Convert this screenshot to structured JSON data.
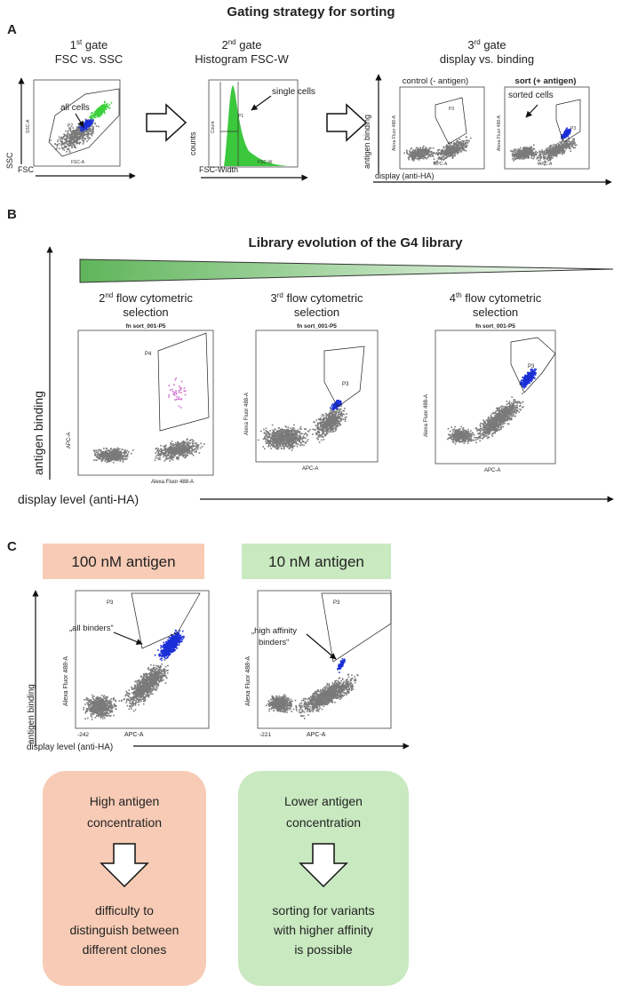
{
  "title": "Gating strategy for sorting",
  "panel_a": {
    "label": "A",
    "gate1": {
      "heading": {
        "number": "1",
        "suffix": "st",
        "word": "gate"
      },
      "subtitle": "FSC vs. SSC",
      "annotation": "all cells",
      "y_axis": "SSC",
      "x_axis": "FSC",
      "plot_x": "FSC-A",
      "plot_y": "SSC-A",
      "gate": "P2"
    },
    "gate2": {
      "heading": {
        "number": "2",
        "suffix": "nd",
        "word": "gate"
      },
      "subtitle": "Histogram FSC-W",
      "annotation": "single cells",
      "y_axis": "counts",
      "x_axis": "FSC-Width",
      "plot_x": "FSC-W",
      "plot_y": "Count",
      "gate": "P1"
    },
    "gate3": {
      "heading": {
        "number": "3",
        "suffix": "rd",
        "word": "gate"
      },
      "subtitle": "display vs. binding",
      "control": "control (- antigen)",
      "sort": "sort (+ antigen)",
      "annotation": "sorted cells",
      "y_axis": "antigen binding",
      "x_axis": "display (anti-HA)",
      "plot_x": "APC-A",
      "plot_y": "Alexa Fluor 488-A",
      "gate": "P3"
    }
  },
  "panel_b": {
    "label": "B",
    "title": "Library evolution of the G4 library",
    "y_axis": "antigen binding",
    "x_axis": "display level (anti-HA)",
    "selections": [
      {
        "number": "2",
        "suffix": "nd",
        "rest": "flow cytometric",
        "line2": "selection",
        "plot_title": "fn sort_001-P5",
        "gate": "P4",
        "plot_x": "Alexa Fluor 488-A",
        "plot_y": "APC-A"
      },
      {
        "number": "3",
        "suffix": "rd",
        "rest": "flow cytometric",
        "line2": "selection",
        "plot_title": "fn sort_001-P5",
        "gate": "P3",
        "plot_x": "APC-A",
        "plot_y": "Alexa Fluor 488-A"
      },
      {
        "number": "4",
        "suffix": "th",
        "rest": "flow cytometric",
        "line2": "selection",
        "plot_title": "fn sort_001-P5",
        "gate": "P3",
        "plot_x": "APC-A",
        "plot_y": "Alexa Fluor 488-A"
      }
    ]
  },
  "panel_c": {
    "label": "C",
    "y_axis": "antigen binding",
    "x_axis": "display level (anti-HA)",
    "conditions": [
      {
        "name": "100 nM antigen",
        "annotation": [
          "„all binders“"
        ],
        "gate": "P3",
        "plot_x": "APC-A",
        "plot_y": "Alexa Fluor 488-A",
        "min_tick": "-242",
        "box_top": [
          "High antigen",
          "concentration"
        ],
        "box_bottom": [
          "difficulty to",
          "distinguish between",
          "different clones"
        ]
      },
      {
        "name": "10 nM antigen",
        "annotation": [
          "„high affinity",
          "binders“"
        ],
        "gate": "P3",
        "plot_x": "APC-A",
        "plot_y": "Alexa Fluor 488-A",
        "min_tick": "-221",
        "box_top": [
          "Lower antigen",
          "concentration"
        ],
        "box_bottom": [
          "sorting for variants",
          "with higher affinity",
          "is possible"
        ]
      }
    ]
  }
}
